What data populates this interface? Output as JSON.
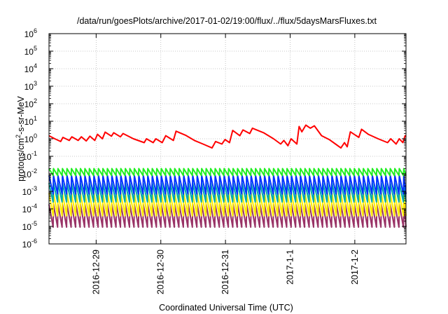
{
  "chart_data": {
    "type": "line",
    "title": "/data/run/goesPlots/archive/2017-01-02/19:00/flux/../flux/5daysMarsFluxes.txt",
    "xlabel": "Coordinated Universal Time (UTC)",
    "ylabel": "protons/cm2-s-sr-MeV",
    "ylabel_parts": {
      "base": "protons/cm",
      "sup": "2",
      "rest": "-s-sr-MeV"
    },
    "yscale": "log",
    "ylim": [
      1e-06,
      1000000.0
    ],
    "yticks": [
      {
        "value": 1e-06,
        "base": "10",
        "exp": "-6"
      },
      {
        "value": 1e-05,
        "base": "10",
        "exp": "-5"
      },
      {
        "value": 0.0001,
        "base": "10",
        "exp": "-4"
      },
      {
        "value": 0.001,
        "base": "10",
        "exp": "-3"
      },
      {
        "value": 0.01,
        "base": "10",
        "exp": "-2"
      },
      {
        "value": 0.1,
        "base": "10",
        "exp": "-1"
      },
      {
        "value": 1,
        "base": "10",
        "exp": "0"
      },
      {
        "value": 10,
        "base": "10",
        "exp": "1"
      },
      {
        "value": 100,
        "base": "10",
        "exp": "2"
      },
      {
        "value": 1000,
        "base": "10",
        "exp": "3"
      },
      {
        "value": 10000,
        "base": "10",
        "exp": "4"
      },
      {
        "value": 100000,
        "base": "10",
        "exp": "5"
      },
      {
        "value": 1000000,
        "base": "10",
        "exp": "6"
      }
    ],
    "xlim": [
      "2016-12-28T06:30",
      "2017-01-02T19:00"
    ],
    "xticks": [
      {
        "value": "2016-12-29T00:00",
        "label": "2016-12-29"
      },
      {
        "value": "2016-12-30T00:00",
        "label": "2016-12-30"
      },
      {
        "value": "2016-12-31T00:00",
        "label": "2016-12-31"
      },
      {
        "value": "2017-01-01T00:00",
        "label": "2017-1-1"
      },
      {
        "value": "2017-01-02T00:00",
        "label": "2017-1-2"
      }
    ],
    "grid": true,
    "legend": "none",
    "series": [
      {
        "color": "#ff0000",
        "points": [
          [
            "2016-12-28T06:30",
            1.5
          ],
          [
            "2016-12-28T08:40",
            1.0
          ],
          [
            "2016-12-28T10:50",
            0.7
          ],
          [
            "2016-12-28T11:40",
            1.2
          ],
          [
            "2016-12-28T14:00",
            0.8
          ],
          [
            "2016-12-28T15:00",
            1.3
          ],
          [
            "2016-12-28T17:20",
            0.8
          ],
          [
            "2016-12-28T18:30",
            1.3
          ],
          [
            "2016-12-28T20:20",
            0.75
          ],
          [
            "2016-12-28T21:40",
            1.4
          ],
          [
            "2016-12-28T23:30",
            0.8
          ],
          [
            "2016-12-29T00:30",
            1.8
          ],
          [
            "2016-12-29T02:20",
            1.0
          ],
          [
            "2016-12-29T03:20",
            2.4
          ],
          [
            "2016-12-29T05:40",
            1.4
          ],
          [
            "2016-12-29T06:30",
            2.2
          ],
          [
            "2016-12-29T09:00",
            1.3
          ],
          [
            "2016-12-29T10:00",
            2.0
          ],
          [
            "2016-12-29T13:50",
            1.0
          ],
          [
            "2016-12-29T17:50",
            0.6
          ],
          [
            "2016-12-29T18:40",
            1.0
          ],
          [
            "2016-12-29T21:10",
            0.6
          ],
          [
            "2016-12-29T22:10",
            1.0
          ],
          [
            "2016-12-30T00:30",
            0.6
          ],
          [
            "2016-12-30T01:50",
            1.5
          ],
          [
            "2016-12-30T04:40",
            0.8
          ],
          [
            "2016-12-30T05:40",
            2.7
          ],
          [
            "2016-12-30T09:10",
            1.6
          ],
          [
            "2016-12-30T12:30",
            0.8
          ],
          [
            "2016-12-30T15:40",
            0.5
          ],
          [
            "2016-12-30T19:00",
            0.3
          ],
          [
            "2016-12-30T20:20",
            0.7
          ],
          [
            "2016-12-30T22:40",
            0.5
          ],
          [
            "2016-12-30T23:50",
            0.9
          ],
          [
            "2016-12-31T01:30",
            0.6
          ],
          [
            "2016-12-31T02:40",
            3.0
          ],
          [
            "2016-12-31T05:20",
            1.5
          ],
          [
            "2016-12-31T06:30",
            3.2
          ],
          [
            "2016-12-31T09:00",
            2.0
          ],
          [
            "2016-12-31T10:00",
            4.0
          ],
          [
            "2016-12-31T14:10",
            2.2
          ],
          [
            "2016-12-31T17:50",
            1.0
          ],
          [
            "2016-12-31T20:30",
            0.5
          ],
          [
            "2016-12-31T21:40",
            0.8
          ],
          [
            "2016-12-31T23:10",
            0.4
          ],
          [
            "2017-01-01T00:20",
            1.0
          ],
          [
            "2017-01-01T02:30",
            0.5
          ],
          [
            "2017-01-01T03:20",
            5.0
          ],
          [
            "2017-01-01T04:20",
            2.5
          ],
          [
            "2017-01-01T05:50",
            6.0
          ],
          [
            "2017-01-01T07:30",
            4.0
          ],
          [
            "2017-01-01T09:00",
            5.5
          ],
          [
            "2017-01-01T11:40",
            1.5
          ],
          [
            "2017-01-01T14:30",
            0.9
          ],
          [
            "2017-01-01T16:50",
            0.5
          ],
          [
            "2017-01-01T18:50",
            0.3
          ],
          [
            "2017-01-01T20:10",
            0.6
          ],
          [
            "2017-01-01T21:10",
            0.35
          ],
          [
            "2017-01-01T22:20",
            2.5
          ],
          [
            "2017-01-02T01:30",
            1.2
          ],
          [
            "2017-01-02T02:30",
            3.5
          ],
          [
            "2017-01-02T05:00",
            1.8
          ],
          [
            "2017-01-02T08:40",
            1.0
          ],
          [
            "2017-01-02T12:10",
            0.6
          ],
          [
            "2017-01-02T13:20",
            1.0
          ],
          [
            "2017-01-02T15:20",
            0.5
          ],
          [
            "2017-01-02T16:30",
            1.0
          ],
          [
            "2017-01-02T17:50",
            0.6
          ],
          [
            "2017-01-02T18:40",
            1.5
          ],
          [
            "2017-01-02T19:00",
            1.3
          ]
        ]
      },
      {
        "color": "#22ee22",
        "sawtooth": {
          "high": 0.02,
          "low": 0.008
        }
      },
      {
        "color": "#0033ff",
        "sawtooth": {
          "high": 0.008,
          "low": 0.0007
        }
      },
      {
        "color": "#00aaaa",
        "sawtooth": {
          "high": 0.003,
          "low": 0.00025
        }
      },
      {
        "color": "#ffee00",
        "sawtooth": {
          "high": 0.0008,
          "low": 4e-05
        }
      },
      {
        "color": "#993366",
        "sawtooth": {
          "high": 0.00018,
          "low": 9e-06
        }
      }
    ]
  }
}
